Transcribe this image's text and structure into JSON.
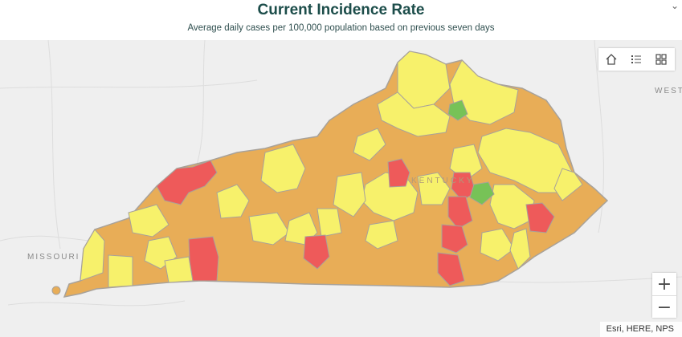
{
  "header": {
    "title": "Current Incidence Rate",
    "subtitle": "Average daily cases per 100,000 population based on previous seven days"
  },
  "map": {
    "labels": {
      "missouri": "MISSOURI",
      "west": "WEST",
      "kentucky": "KENTUCKY"
    },
    "colors": {
      "background": "#efefef",
      "orange": "#e8ad57",
      "yellow": "#f7f16b",
      "red": "#ee5a5a",
      "green": "#77c257",
      "border": "#a8a29a"
    },
    "attribution": "Esri, HERE, NPS"
  },
  "widgets": {
    "home": "home-icon",
    "legend": "legend-list-icon",
    "basemap": "basemap-gallery-icon",
    "zoom_in": "+",
    "zoom_out": "−"
  }
}
